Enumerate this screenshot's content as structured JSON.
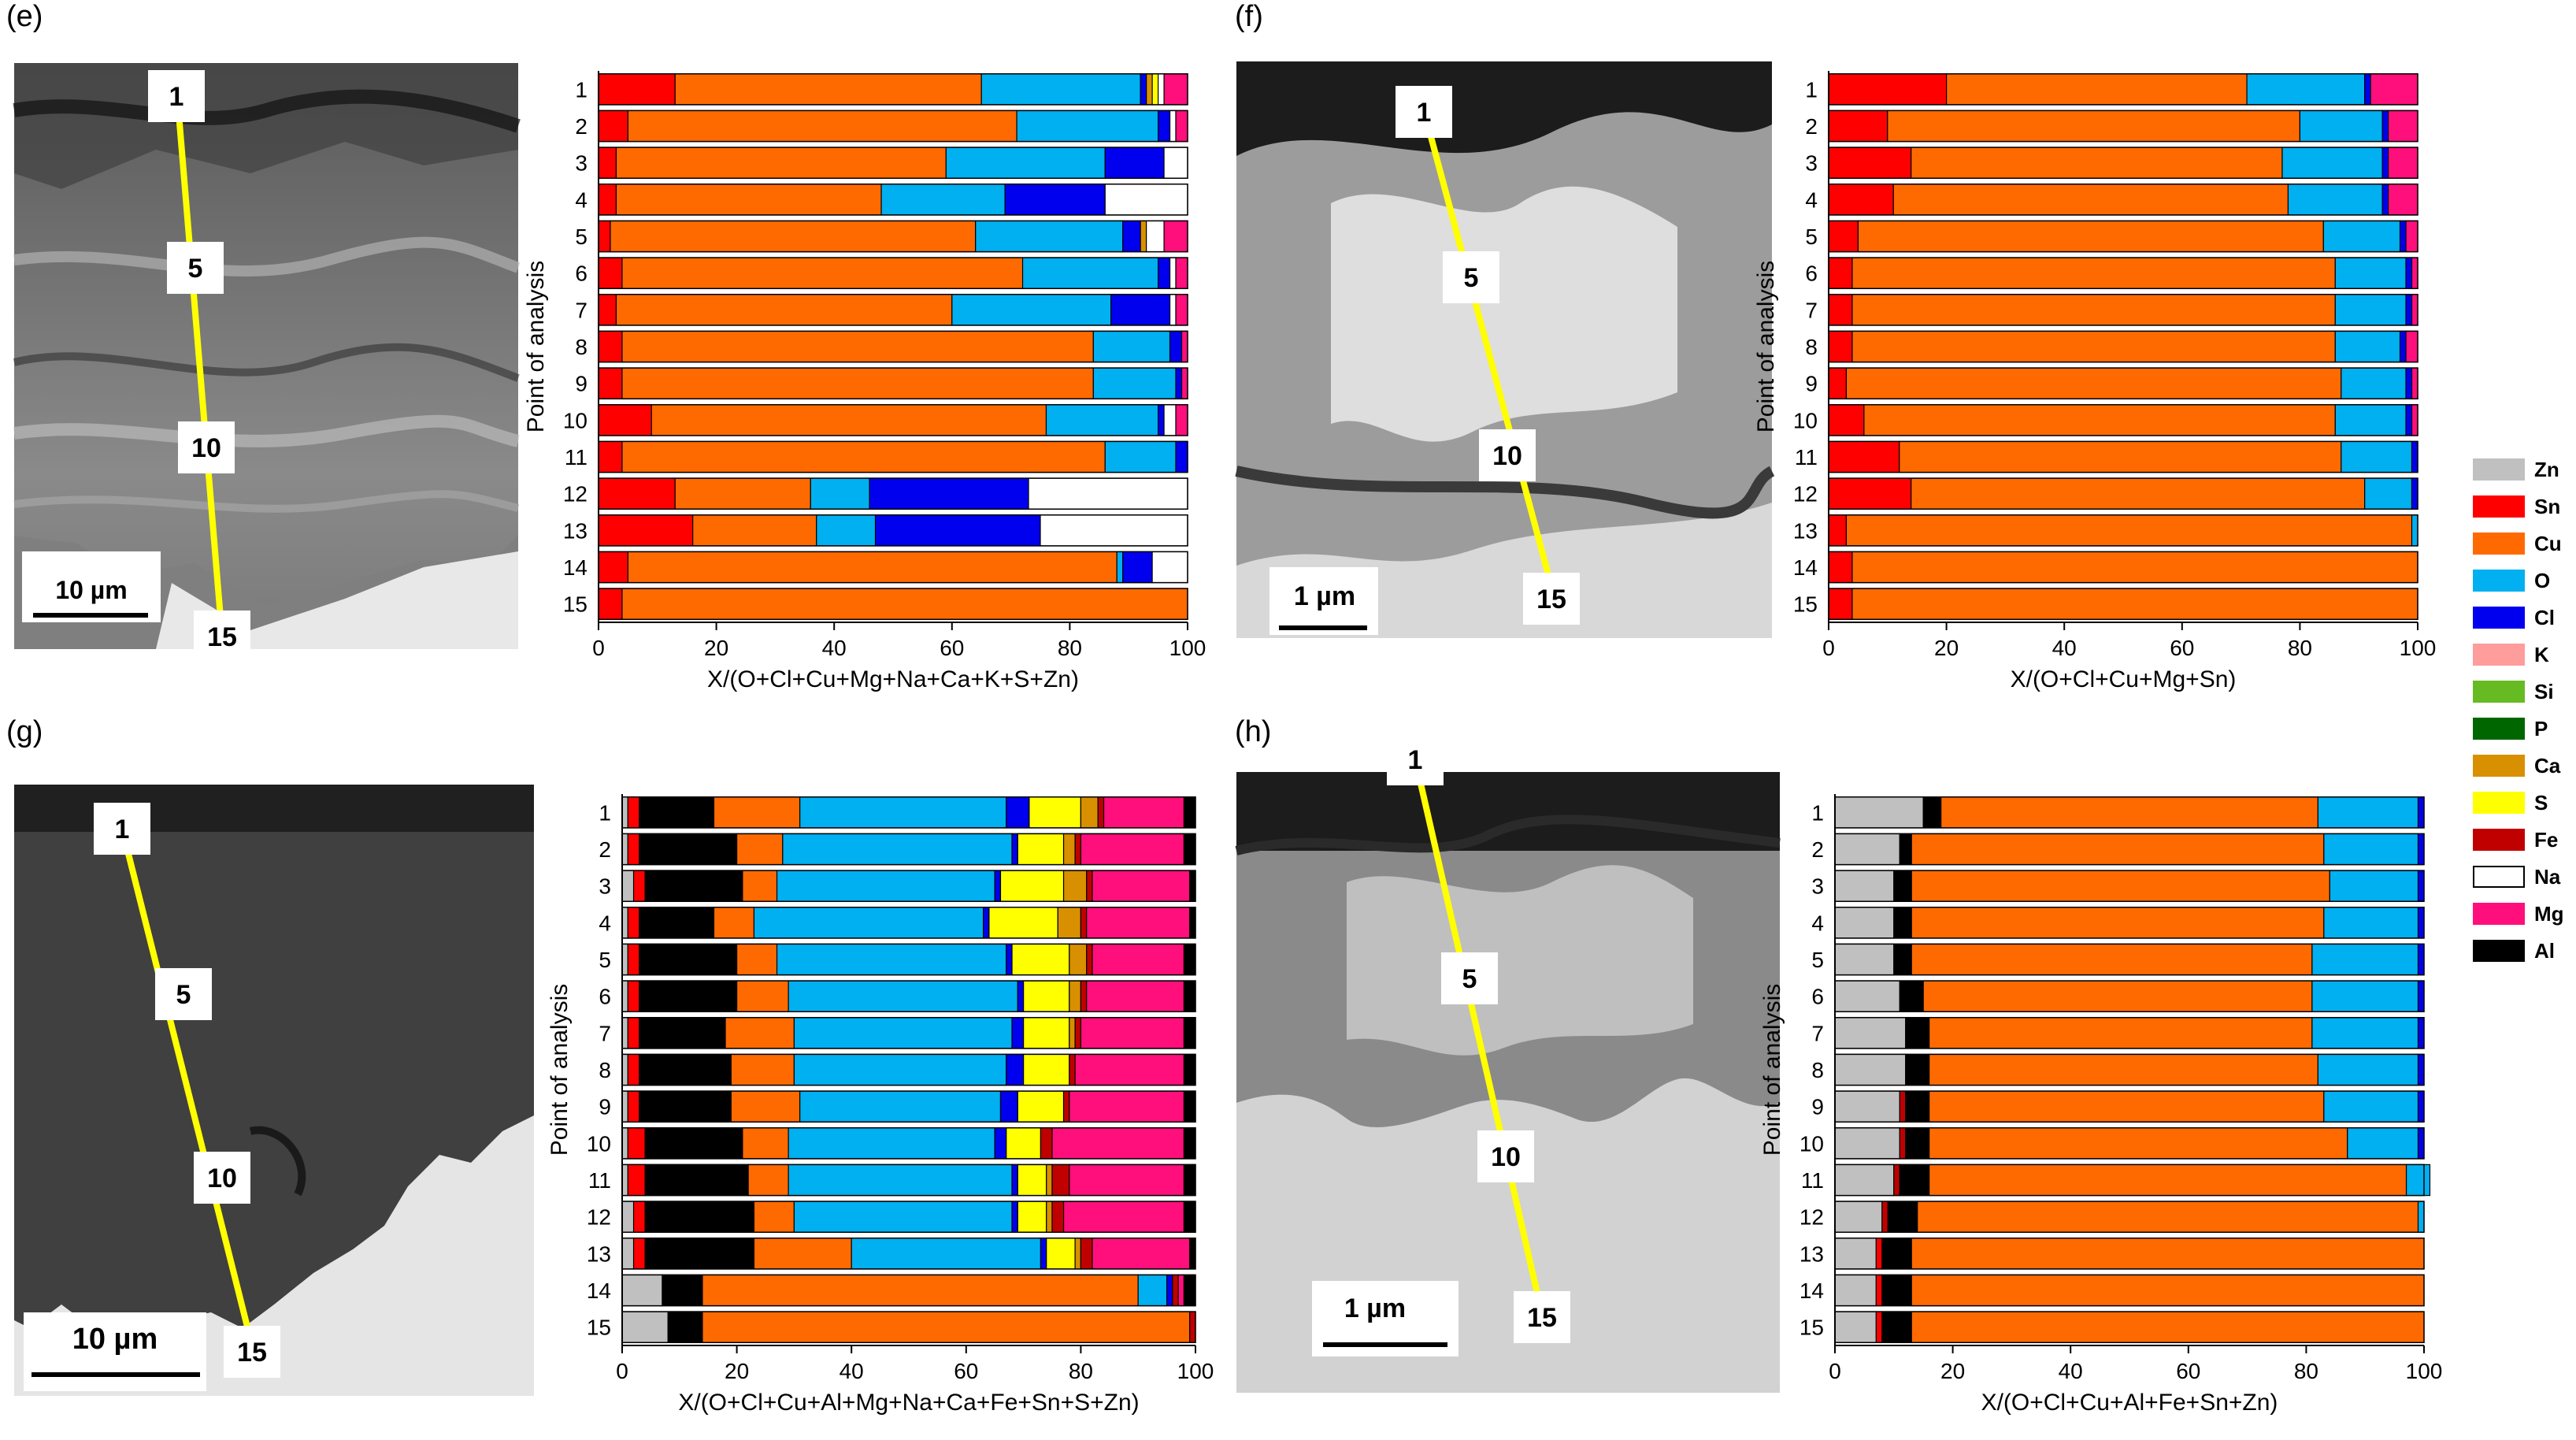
{
  "panels": [
    {
      "letter": "(e)",
      "scale_bar": "10 µm",
      "markers": [
        "1",
        "5",
        "10",
        "15"
      ]
    },
    {
      "letter": "(f)",
      "scale_bar": "1 µm",
      "markers": [
        "1",
        "5",
        "10",
        "15"
      ]
    },
    {
      "letter": "(g)",
      "scale_bar": "10 µm",
      "markers": [
        "1",
        "5",
        "10",
        "15"
      ]
    },
    {
      "letter": "(h)",
      "scale_bar": "1 µm",
      "markers": [
        "1",
        "5",
        "10",
        "15"
      ]
    }
  ],
  "colors": {
    "Zn": "#c0c0c0",
    "Sn": "#ff0000",
    "Cu": "#ff6a00",
    "O": "#00b0f0",
    "Cl": "#0000ee",
    "K": "#ff9c9c",
    "Si": "#66bb22",
    "P": "#006600",
    "Ca": "#d89000",
    "S": "#ffff00",
    "Fe": "#c00000",
    "Na": "#ffffff",
    "Mg": "#ff0f7b",
    "Al": "#000000"
  },
  "legend": [
    "Zn",
    "Sn",
    "Cu",
    "O",
    "Cl",
    "K",
    "Si",
    "P",
    "Ca",
    "S",
    "Fe",
    "Na",
    "Mg",
    "Al"
  ],
  "chart_data": [
    {
      "type": "bar",
      "orientation": "horizontal",
      "stacked": true,
      "panel": "(e)",
      "xlabel": "X/(O+Cl+Cu+Mg+Na+Ca+K+S+Zn)",
      "ylabel": "Point of analysis",
      "xlim": [
        0,
        100
      ],
      "xticks": [
        0,
        20,
        40,
        60,
        80,
        100
      ],
      "categories": [
        "1",
        "2",
        "3",
        "4",
        "5",
        "6",
        "7",
        "8",
        "9",
        "10",
        "11",
        "12",
        "13",
        "14",
        "15"
      ],
      "order": [
        "Zn",
        "Sn",
        "Cu",
        "O",
        "Cl",
        "K",
        "Si",
        "P",
        "Ca",
        "S",
        "Fe",
        "Na",
        "Mg",
        "Al"
      ],
      "series": [
        {
          "name": "Sn",
          "values": [
            13,
            5,
            3,
            3,
            2,
            4,
            3,
            4,
            4,
            9,
            4,
            13,
            16,
            5,
            4
          ]
        },
        {
          "name": "Cu",
          "values": [
            52,
            66,
            56,
            45,
            62,
            68,
            57,
            80,
            80,
            67,
            82,
            23,
            21,
            83,
            96
          ]
        },
        {
          "name": "O",
          "values": [
            27,
            24,
            27,
            21,
            25,
            23,
            27,
            13,
            14,
            19,
            12,
            10,
            10,
            1,
            0
          ]
        },
        {
          "name": "Cl",
          "values": [
            1,
            2,
            10,
            17,
            3,
            2,
            10,
            2,
            1,
            1,
            2,
            27,
            28,
            5,
            0
          ]
        },
        {
          "name": "K",
          "values": [
            0,
            0,
            0,
            0,
            0,
            0,
            0,
            0,
            0,
            0,
            0,
            0,
            0,
            0,
            0
          ]
        },
        {
          "name": "Ca",
          "values": [
            1,
            0,
            0,
            0,
            1,
            0,
            0,
            0,
            0,
            0,
            0,
            0,
            0,
            0,
            0
          ]
        },
        {
          "name": "S",
          "values": [
            1,
            0,
            0,
            0,
            0,
            0,
            0,
            0,
            0,
            0,
            0,
            0,
            0,
            0,
            0
          ]
        },
        {
          "name": "Na",
          "values": [
            1,
            1,
            4,
            14,
            3,
            1,
            1,
            0,
            0,
            2,
            0,
            27,
            25,
            6,
            0
          ]
        },
        {
          "name": "Mg",
          "values": [
            4,
            2,
            0,
            0,
            4,
            2,
            2,
            1,
            1,
            2,
            0,
            0,
            0,
            0,
            0
          ]
        }
      ]
    },
    {
      "type": "bar",
      "orientation": "horizontal",
      "stacked": true,
      "panel": "(f)",
      "xlabel": "X/(O+Cl+Cu+Mg+Sn)",
      "ylabel": "Point of analysis",
      "xlim": [
        0,
        100
      ],
      "xticks": [
        0,
        20,
        40,
        60,
        80,
        100
      ],
      "categories": [
        "1",
        "2",
        "3",
        "4",
        "5",
        "6",
        "7",
        "8",
        "9",
        "10",
        "11",
        "12",
        "13",
        "14",
        "15"
      ],
      "order": [
        "Zn",
        "Sn",
        "Cu",
        "O",
        "Cl",
        "K",
        "Si",
        "P",
        "Ca",
        "S",
        "Fe",
        "Na",
        "Mg",
        "Al"
      ],
      "series": [
        {
          "name": "Sn",
          "values": [
            20,
            10,
            14,
            11,
            5,
            4,
            4,
            4,
            3,
            6,
            12,
            14,
            3,
            4,
            4
          ]
        },
        {
          "name": "Cu",
          "values": [
            51,
            70,
            63,
            67,
            79,
            82,
            82,
            82,
            84,
            80,
            75,
            77,
            96,
            96,
            96
          ]
        },
        {
          "name": "O",
          "values": [
            20,
            14,
            17,
            16,
            13,
            12,
            12,
            11,
            11,
            12,
            12,
            8,
            1,
            0,
            0
          ]
        },
        {
          "name": "Cl",
          "values": [
            1,
            1,
            1,
            1,
            1,
            1,
            1,
            1,
            1,
            1,
            1,
            1,
            0,
            0,
            0
          ]
        },
        {
          "name": "Mg",
          "values": [
            8,
            5,
            5,
            5,
            2,
            1,
            1,
            2,
            1,
            1,
            0,
            0,
            0,
            0,
            0
          ]
        }
      ]
    },
    {
      "type": "bar",
      "orientation": "horizontal",
      "stacked": true,
      "panel": "(g)",
      "xlabel": "X/(O+Cl+Cu+Al+Mg+Na+Ca+Fe+Sn+S+Zn)",
      "ylabel": "Point of analysis",
      "xlim": [
        0,
        100
      ],
      "xticks": [
        0,
        20,
        40,
        60,
        80,
        100
      ],
      "categories": [
        "1",
        "2",
        "3",
        "4",
        "5",
        "6",
        "7",
        "8",
        "9",
        "10",
        "11",
        "12",
        "13",
        "14",
        "15"
      ],
      "order": [
        "Zn",
        "Sn",
        "Cu",
        "O",
        "Cl",
        "K",
        "Si",
        "P",
        "Ca",
        "S",
        "Fe",
        "Na",
        "Mg",
        "Al"
      ],
      "series": [
        {
          "name": "Zn",
          "values": [
            1,
            1,
            2,
            1,
            1,
            1,
            1,
            1,
            1,
            1,
            1,
            2,
            2,
            7,
            8
          ]
        },
        {
          "name": "Sn",
          "values": [
            2,
            2,
            2,
            2,
            2,
            2,
            2,
            2,
            2,
            3,
            3,
            2,
            2,
            0,
            0
          ]
        },
        {
          "name": "Al",
          "values": [
            13,
            17,
            17,
            13,
            17,
            17,
            15,
            16,
            16,
            17,
            18,
            19,
            19,
            7,
            6
          ]
        },
        {
          "name": "Cu",
          "values": [
            15,
            8,
            6,
            7,
            7,
            9,
            12,
            11,
            12,
            8,
            7,
            7,
            17,
            76,
            85
          ]
        },
        {
          "name": "O",
          "values": [
            36,
            40,
            38,
            40,
            40,
            40,
            38,
            37,
            35,
            36,
            39,
            38,
            33,
            5,
            0
          ]
        },
        {
          "name": "Cl",
          "values": [
            4,
            1,
            1,
            1,
            1,
            1,
            2,
            3,
            3,
            2,
            1,
            1,
            1,
            1,
            0
          ]
        },
        {
          "name": "S",
          "values": [
            9,
            8,
            11,
            12,
            10,
            8,
            8,
            8,
            8,
            6,
            5,
            5,
            5,
            0,
            0
          ]
        },
        {
          "name": "Ca",
          "values": [
            3,
            2,
            4,
            4,
            3,
            2,
            1,
            0,
            0,
            0,
            1,
            1,
            1,
            0,
            0
          ]
        },
        {
          "name": "Fe",
          "values": [
            1,
            1,
            1,
            1,
            1,
            1,
            1,
            1,
            1,
            2,
            3,
            2,
            2,
            1,
            1
          ]
        },
        {
          "name": "Mg",
          "values": [
            14,
            18,
            17,
            18,
            16,
            17,
            18,
            19,
            20,
            23,
            20,
            21,
            17,
            1,
            0
          ]
        },
        {
          "name": "Al",
          "values": [
            2,
            2,
            1,
            1,
            2,
            2,
            2,
            2,
            2,
            2,
            2,
            2,
            1,
            2,
            0
          ]
        }
      ]
    },
    {
      "type": "bar",
      "orientation": "horizontal",
      "stacked": true,
      "panel": "(h)",
      "xlabel": "X/(O+Cl+Cu+Al+Fe+Sn+Zn)",
      "ylabel": "Point of analysis",
      "xlim": [
        0,
        100
      ],
      "xticks": [
        0,
        20,
        40,
        60,
        80,
        100
      ],
      "categories": [
        "1",
        "2",
        "3",
        "4",
        "5",
        "6",
        "7",
        "8",
        "9",
        "10",
        "11",
        "12",
        "13",
        "14",
        "15"
      ],
      "order": [
        "Zn",
        "Sn",
        "Cu",
        "O",
        "Cl",
        "K",
        "Si",
        "P",
        "Ca",
        "S",
        "Fe",
        "Na",
        "Mg",
        "Al"
      ],
      "series": [
        {
          "name": "Zn",
          "values": [
            15,
            11,
            10,
            10,
            10,
            11,
            12,
            12,
            11,
            11,
            10,
            8,
            7,
            7,
            7
          ]
        },
        {
          "name": "Sn",
          "values": [
            0,
            0,
            0,
            0,
            0,
            0,
            0,
            0,
            0,
            0,
            0,
            0,
            1,
            1,
            1
          ]
        },
        {
          "name": "Fe",
          "values": [
            0,
            0,
            0,
            0,
            0,
            0,
            0,
            0,
            1,
            1,
            1,
            1,
            0,
            0,
            0
          ]
        },
        {
          "name": "Al",
          "values": [
            3,
            2,
            3,
            3,
            3,
            4,
            4,
            4,
            4,
            4,
            5,
            5,
            5,
            5,
            5
          ]
        },
        {
          "name": "Cu",
          "values": [
            64,
            70,
            71,
            70,
            68,
            66,
            65,
            66,
            67,
            71,
            81,
            85,
            87,
            87,
            87
          ]
        },
        {
          "name": "O",
          "values": [
            17,
            16,
            15,
            16,
            18,
            18,
            18,
            17,
            16,
            12,
            4,
            1,
            0,
            0,
            0
          ]
        },
        {
          "name": "Cl",
          "values": [
            1,
            1,
            1,
            1,
            1,
            1,
            1,
            1,
            1,
            1,
            0,
            0,
            0,
            0,
            0
          ]
        }
      ]
    }
  ]
}
